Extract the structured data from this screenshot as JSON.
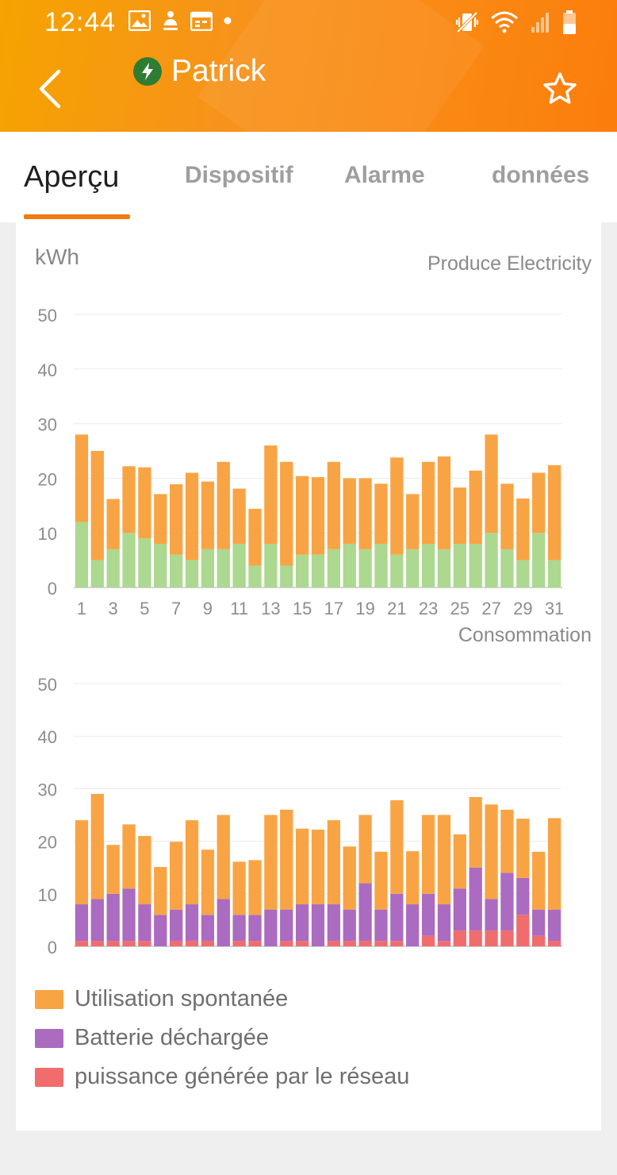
{
  "status_bar": {
    "time": "12:44"
  },
  "header": {
    "title": "Patrick"
  },
  "tabs": [
    {
      "label": "Aperçu",
      "active": true
    },
    {
      "label": "Dispositif",
      "active": false
    },
    {
      "label": "Alarme",
      "active": false
    },
    {
      "label": "données",
      "active": false
    }
  ],
  "unit_label": "kWh",
  "colors": {
    "orange": "#f9a444",
    "green": "#acd890",
    "purple": "#ab6bc0",
    "red": "#f16c6c",
    "accent": "#f07a0f"
  },
  "legend": [
    {
      "label": "Utilisation spontanée",
      "color": "#f9a444"
    },
    {
      "label": "Batterie déchargée",
      "color": "#ab6bc0"
    },
    {
      "label": "puissance générée par le réseau",
      "color": "#f16c6c"
    }
  ],
  "chart_data": [
    {
      "type": "bar",
      "stacked": true,
      "title": "Produce Electricity",
      "ylabel": "kWh",
      "ylim": [
        0,
        50
      ],
      "yticks": [
        0,
        10,
        20,
        30,
        40,
        50
      ],
      "grid": true,
      "categories": [
        1,
        2,
        3,
        4,
        5,
        6,
        7,
        8,
        9,
        10,
        11,
        12,
        13,
        14,
        15,
        16,
        17,
        18,
        19,
        20,
        21,
        22,
        23,
        24,
        25,
        26,
        27,
        28,
        29,
        30,
        31
      ],
      "xtick_labels": [
        "1",
        "3",
        "5",
        "7",
        "9",
        "11",
        "13",
        "15",
        "17",
        "19",
        "21",
        "23",
        "25",
        "27",
        "29",
        "31"
      ],
      "series": [
        {
          "color": "#acd890",
          "values": [
            12,
            5,
            7,
            10,
            9,
            8,
            6,
            5,
            7,
            7,
            8,
            4,
            8,
            4,
            6,
            6,
            7,
            8,
            7,
            8,
            6,
            7,
            8,
            7,
            8,
            8,
            10,
            7,
            5,
            10,
            5
          ]
        },
        {
          "color": "#f9a444",
          "values": [
            16,
            20,
            9.2,
            12.2,
            13,
            9.1,
            12.9,
            16,
            12.4,
            16,
            10.1,
            10.4,
            18,
            19,
            14.4,
            14.2,
            16,
            12,
            13,
            11,
            17.8,
            10.1,
            15,
            17,
            10.3,
            13.4,
            18,
            12,
            11.3,
            11,
            17.4
          ]
        }
      ]
    },
    {
      "type": "bar",
      "stacked": true,
      "title": "Consommation",
      "ylim": [
        0,
        50
      ],
      "yticks": [
        0,
        10,
        20,
        30,
        40,
        50
      ],
      "grid": true,
      "categories": [
        1,
        2,
        3,
        4,
        5,
        6,
        7,
        8,
        9,
        10,
        11,
        12,
        13,
        14,
        15,
        16,
        17,
        18,
        19,
        20,
        21,
        22,
        23,
        24,
        25,
        26,
        27,
        28,
        29,
        30,
        31
      ],
      "series": [
        {
          "name": "puissance générée par le réseau",
          "color": "#f16c6c",
          "values": [
            1,
            1,
            1,
            1,
            1,
            0,
            1,
            1,
            1,
            0,
            1,
            1,
            0,
            1,
            1,
            0,
            1,
            1,
            1,
            1,
            1,
            0,
            2,
            1,
            3,
            3,
            3,
            3,
            6,
            2,
            1
          ]
        },
        {
          "name": "Batterie déchargée",
          "color": "#ab6bc0",
          "values": [
            7,
            8,
            9,
            10,
            7,
            6,
            6,
            7,
            5,
            9,
            5,
            5,
            7,
            6,
            7,
            8,
            7,
            6,
            11,
            6,
            9,
            8,
            8,
            7,
            8,
            12,
            6,
            11,
            7,
            5,
            6
          ]
        },
        {
          "name": "Utilisation spontanée",
          "color": "#f9a444",
          "values": [
            16,
            20,
            9.3,
            12.2,
            13,
            9.1,
            12.9,
            16,
            12.4,
            16,
            10.1,
            10.4,
            18,
            19,
            14.4,
            14.2,
            16,
            12,
            13,
            11,
            17.8,
            10.1,
            15,
            17,
            10.3,
            13.4,
            18,
            12,
            11.3,
            11,
            17.4
          ]
        }
      ]
    }
  ]
}
